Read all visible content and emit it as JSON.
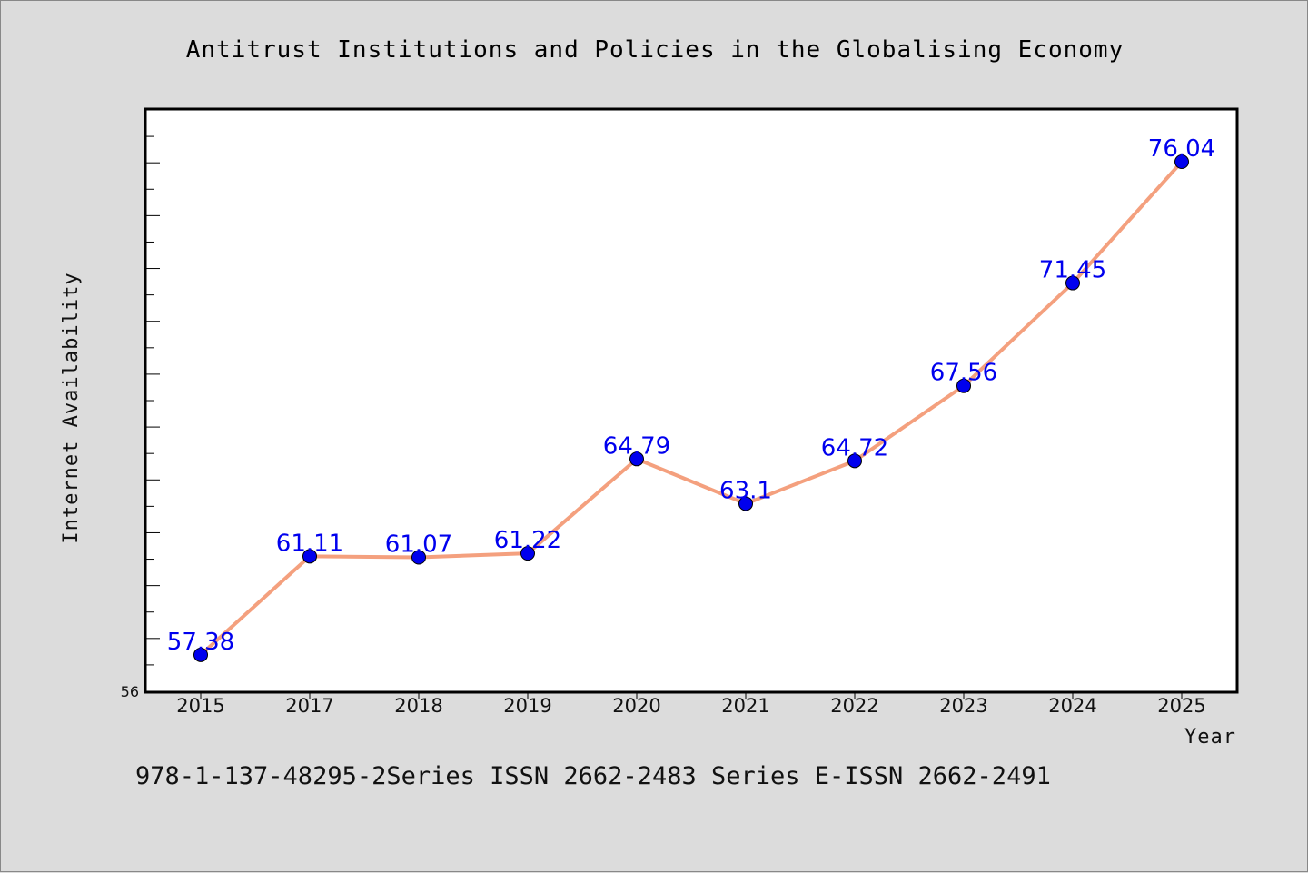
{
  "chart_data": {
    "type": "line",
    "title": "Antitrust Institutions and Policies in the Globalising Economy",
    "xlabel": "Year",
    "ylabel": "Internet Availability",
    "categories": [
      "2015",
      "2017",
      "2018",
      "2019",
      "2020",
      "2021",
      "2022",
      "2023",
      "2024",
      "2025"
    ],
    "series": [
      {
        "values": [
          57.38,
          61.11,
          61.07,
          61.22,
          64.79,
          63.1,
          64.72,
          67.56,
          71.45,
          76.04
        ],
        "value_labels": [
          "57.38",
          "61.11",
          "61.07",
          "61.22",
          "64.79",
          "63.1",
          "64.72",
          "67.56",
          "71.45",
          "76.04"
        ]
      }
    ],
    "ylim": [
      56,
      78
    ],
    "y_tick_labels": [
      "56"
    ],
    "grid": false,
    "colors": {
      "line": "#f4a07e",
      "marker": "#0000ee",
      "label": "#0000ee",
      "plot_bg": "#ffffff",
      "page_bg": "#dcdcdc"
    }
  },
  "footer": {
    "text": "978-1-137-48295-2Series ISSN 2662-2483 Series E-ISSN 2662-2491"
  }
}
